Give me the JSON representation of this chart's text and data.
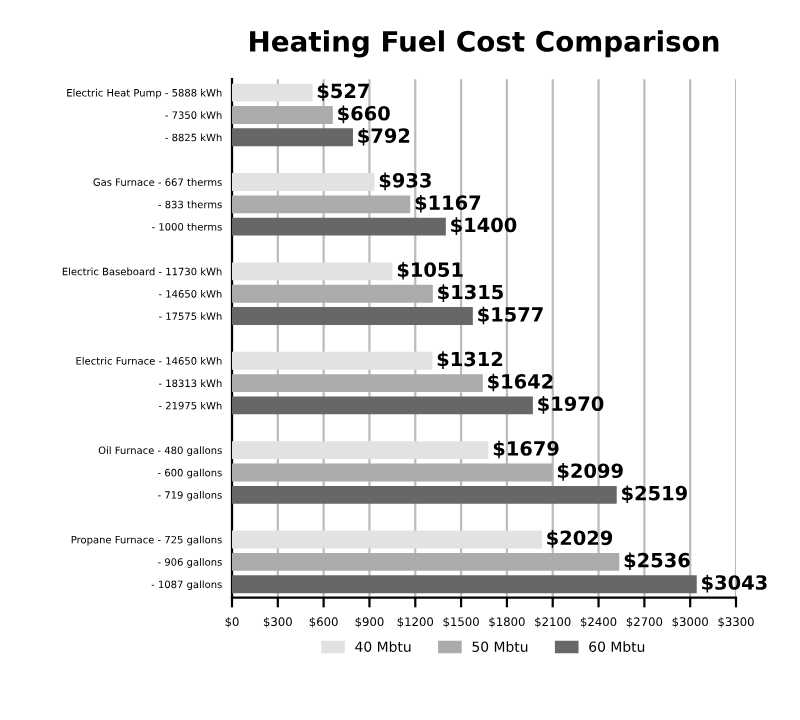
{
  "chart_data": {
    "type": "bar",
    "orientation": "horizontal",
    "title": "Heating Fuel Cost Comparison",
    "categories": [
      "Electric Heat Pump - 5888 kWh",
      "- 7350 kWh",
      "- 8825 kWh",
      null,
      "Gas Furnace - 667 therms",
      "- 833 therms",
      "- 1000 therms",
      null,
      "Electric Baseboard - 11730 kWh",
      "- 14650 kWh",
      "- 17575 kWh",
      null,
      "Electric Furnace - 14650 kWh",
      "- 18313 kWh",
      "- 21975 kWh",
      null,
      "Oil Furnace - 480 gallons",
      "- 600 gallons",
      "- 719 gallons",
      null,
      "Propane Furnace - 725 gallons",
      "- 906 gallons",
      "- 1087 gallons"
    ],
    "series": [
      {
        "name": "40 Mbtu",
        "color": "#e2e2e2",
        "values": [
          527,
          null,
          null,
          null,
          933,
          null,
          null,
          null,
          1051,
          null,
          null,
          null,
          1312,
          null,
          null,
          null,
          1679,
          null,
          null,
          null,
          2029,
          null,
          null
        ],
        "value_labels": [
          "$527",
          null,
          null,
          null,
          "$933",
          null,
          null,
          null,
          "$1051",
          null,
          null,
          null,
          "$1312",
          null,
          null,
          null,
          "$1679",
          null,
          null,
          null,
          "$2029",
          null,
          null
        ]
      },
      {
        "name": "50 Mbtu",
        "color": "#ababab",
        "values": [
          null,
          660,
          null,
          null,
          null,
          1167,
          null,
          null,
          null,
          1315,
          null,
          null,
          null,
          1642,
          null,
          null,
          null,
          2099,
          null,
          null,
          null,
          2536,
          null
        ],
        "value_labels": [
          null,
          "$660",
          null,
          null,
          null,
          "$1167",
          null,
          null,
          null,
          "$1315",
          null,
          null,
          null,
          "$1642",
          null,
          null,
          null,
          "$2099",
          null,
          null,
          null,
          "$2536",
          null
        ]
      },
      {
        "name": "60 Mbtu",
        "color": "#676767",
        "values": [
          null,
          null,
          792,
          null,
          null,
          null,
          1400,
          null,
          null,
          null,
          1577,
          null,
          null,
          null,
          1970,
          null,
          null,
          null,
          2519,
          null,
          null,
          null,
          3043
        ],
        "value_labels": [
          null,
          null,
          "$792",
          null,
          null,
          null,
          "$1400",
          null,
          null,
          null,
          "$1577",
          null,
          null,
          null,
          "$1970",
          null,
          null,
          null,
          "$2519",
          null,
          null,
          null,
          "$3043"
        ]
      }
    ],
    "xlim": [
      0,
      3300
    ],
    "xticks": [
      {
        "value": 0,
        "label": "$0"
      },
      {
        "value": 300,
        "label": "$300"
      },
      {
        "value": 600,
        "label": "$600"
      },
      {
        "value": 900,
        "label": "$900"
      },
      {
        "value": 1200,
        "label": "$1200"
      },
      {
        "value": 1500,
        "label": "$1500"
      },
      {
        "value": 1800,
        "label": "$1800"
      },
      {
        "value": 2100,
        "label": "$2100"
      },
      {
        "value": 2400,
        "label": "$2400"
      },
      {
        "value": 2700,
        "label": "$2700"
      },
      {
        "value": 3000,
        "label": "$3000"
      },
      {
        "value": 3300,
        "label": "$3300"
      }
    ],
    "grid": "x",
    "legend": "bottom"
  }
}
